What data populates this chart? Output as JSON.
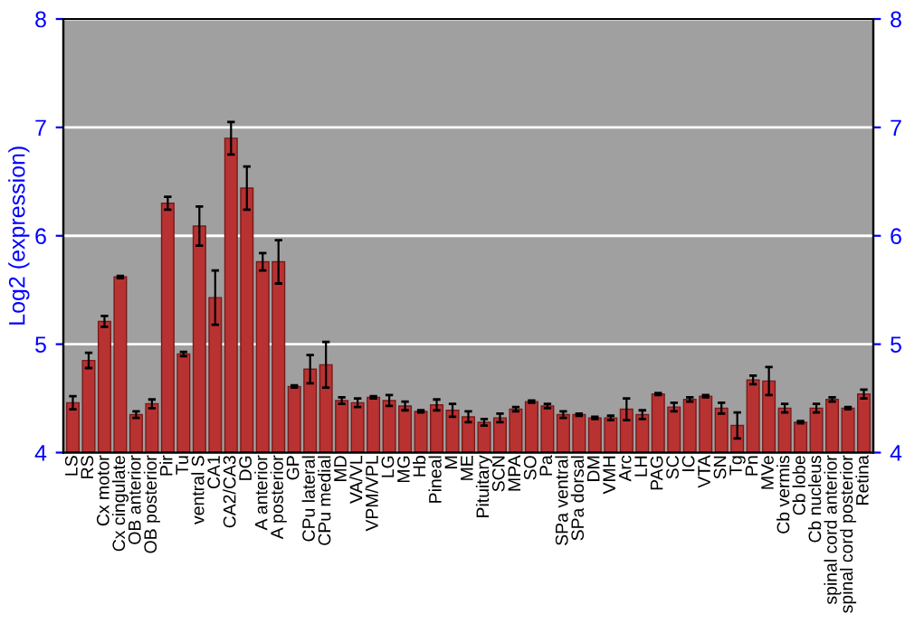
{
  "chart_data": {
    "type": "bar",
    "ylabel": "Log2 (expression)",
    "categories": [
      "LS",
      "RS",
      "Cx motor",
      "Cx cingulate",
      "OB anterior",
      "OB posterior",
      "Pir",
      "Tu",
      "ventral S",
      "CA1",
      "CA2/CA3",
      "DG",
      "A anterior",
      "A posterior",
      "GP",
      "CPu lateral",
      "CPu medial",
      "MD",
      "VA/VL",
      "VPM/VPL",
      "LG",
      "MG",
      "Hb",
      "Pineal",
      "M",
      "ME",
      "Pituitary",
      "SCN",
      "MPA",
      "SO",
      "Pa",
      "SPa ventral",
      "SPa dorsal",
      "DM",
      "VMH",
      "Arc",
      "LH",
      "PAG",
      "SC",
      "IC",
      "VTA",
      "SN",
      "Tg",
      "Pn",
      "MVe",
      "Cb vermis",
      "Cb lobe",
      "Cb nucleus",
      "spinal cord anterior",
      "spinal cord posterior",
      "Retina"
    ],
    "values": [
      4.46,
      4.85,
      5.21,
      5.62,
      4.35,
      4.45,
      6.3,
      4.91,
      6.09,
      5.43,
      6.9,
      6.44,
      5.76,
      5.76,
      4.61,
      4.77,
      4.81,
      4.48,
      4.46,
      4.51,
      4.48,
      4.43,
      4.38,
      4.44,
      4.39,
      4.33,
      4.28,
      4.32,
      4.4,
      4.47,
      4.43,
      4.35,
      4.35,
      4.32,
      4.32,
      4.4,
      4.35,
      4.54,
      4.42,
      4.49,
      4.52,
      4.41,
      4.25,
      4.67,
      4.66,
      4.41,
      4.28,
      4.41,
      4.49,
      4.41,
      4.54
    ],
    "errors": [
      0.06,
      0.07,
      0.05,
      0.01,
      0.03,
      0.04,
      0.06,
      0.02,
      0.18,
      0.25,
      0.15,
      0.2,
      0.08,
      0.2,
      0.01,
      0.13,
      0.21,
      0.03,
      0.04,
      0.01,
      0.05,
      0.04,
      0.01,
      0.05,
      0.06,
      0.05,
      0.03,
      0.04,
      0.02,
      0.01,
      0.02,
      0.03,
      0.01,
      0.01,
      0.02,
      0.1,
      0.04,
      0.01,
      0.04,
      0.02,
      0.01,
      0.05,
      0.12,
      0.04,
      0.13,
      0.04,
      0.01,
      0.04,
      0.02,
      0.01,
      0.04
    ],
    "color": "#b83232",
    "ylim": [
      4,
      8
    ],
    "yticks": [
      4,
      5,
      6,
      7,
      8
    ],
    "y2lim": [
      4,
      8
    ],
    "y2ticks": [
      4,
      5,
      6,
      7,
      8
    ],
    "grid": "y"
  }
}
